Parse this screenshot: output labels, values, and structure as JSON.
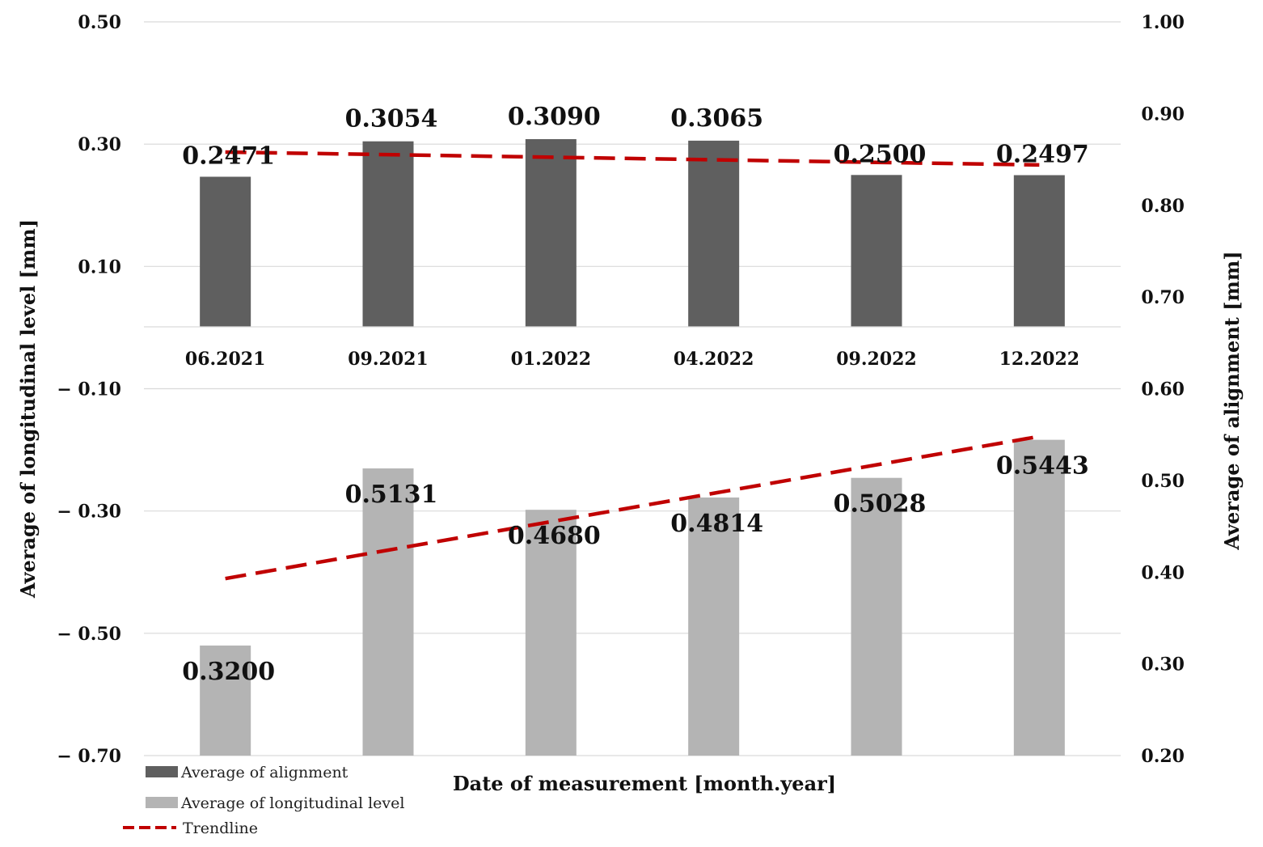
{
  "chart_data": {
    "type": "bar",
    "xlabel": "Date of measurement [month.year]",
    "ylabel_left": "Average of longitudinal level [mm]",
    "ylabel_right": "Average of alignment [mm]",
    "categories": [
      "06.2021",
      "09.2021",
      "01.2022",
      "04.2022",
      "09.2022",
      "12.2022"
    ],
    "left_axis": {
      "ylim": [
        -0.7,
        0.5
      ],
      "ticks": [
        0.5,
        0.3,
        0.1,
        -0.1,
        -0.3,
        -0.5,
        -0.7
      ],
      "tick_labels": [
        "0.50",
        "0.30",
        "0.10",
        "− 0.10",
        "− 0.30",
        "− 0.50",
        "− 0.70"
      ]
    },
    "right_axis": {
      "ylim": [
        0.2,
        1.0
      ],
      "ticks": [
        1.0,
        0.9,
        0.8,
        0.7,
        0.6,
        0.5,
        0.4,
        0.3,
        0.2
      ],
      "tick_labels": [
        "1.00",
        "0.90",
        "0.80",
        "0.70",
        "0.60",
        "0.50",
        "0.40",
        "0.30",
        "0.20"
      ]
    },
    "series": [
      {
        "name": "Average of alignment",
        "axis": "left",
        "color": "#5f5f5f",
        "values": [
          0.2471,
          0.3054,
          0.309,
          0.3065,
          0.25,
          0.2497
        ],
        "labels": [
          "0.2471",
          "0.3054",
          "0.3090",
          "0.3065",
          "0.2500",
          "0.2497"
        ],
        "trendline": [
          0.287,
          0.266
        ]
      },
      {
        "name": "Average of longitudinal level",
        "axis": "right",
        "color": "#b4b4b4",
        "values": [
          0.32,
          0.5131,
          0.468,
          0.4814,
          0.5028,
          0.5443
        ],
        "labels": [
          "0.3200",
          "0.5131",
          "0.4680",
          "0.4814",
          "0.5028",
          "0.5443"
        ],
        "trendline": [
          0.393,
          0.548
        ]
      }
    ],
    "trendline": {
      "name": "Trendline",
      "color": "#c00000",
      "style": "dashed"
    },
    "legend": [
      "Average of alignment",
      "Average of longitudinal level",
      "Trendline"
    ],
    "grid": true,
    "legend_position": "bottom-left"
  }
}
